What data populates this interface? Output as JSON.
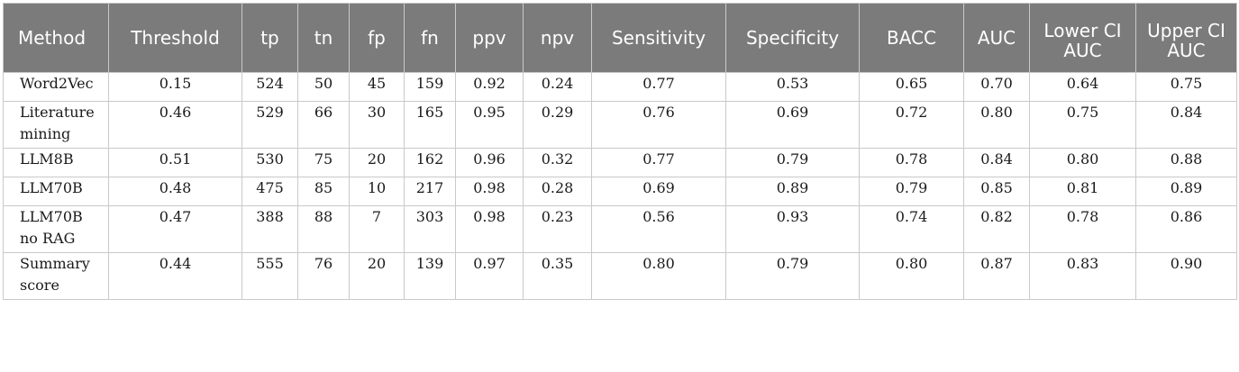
{
  "table": {
    "headers": [
      "Method",
      "Threshold",
      "tp",
      "tn",
      "fp",
      "fn",
      "ppv",
      "npv",
      "Sensitivity",
      "Specificity",
      "BACC",
      "AUC",
      "Lower CI AUC",
      "Upper CI AUC"
    ],
    "rows": [
      [
        "Word2Vec",
        "0.15",
        "524",
        "50",
        "45",
        "159",
        "0.92",
        "0.24",
        "0.77",
        "0.53",
        "0.65",
        "0.70",
        "0.64",
        "0.75"
      ],
      [
        "Literature mining",
        "0.46",
        "529",
        "66",
        "30",
        "165",
        "0.95",
        "0.29",
        "0.76",
        "0.69",
        "0.72",
        "0.80",
        "0.75",
        "0.84"
      ],
      [
        "LLM8B",
        "0.51",
        "530",
        "75",
        "20",
        "162",
        "0.96",
        "0.32",
        "0.77",
        "0.79",
        "0.78",
        "0.84",
        "0.80",
        "0.88"
      ],
      [
        "LLM70B",
        "0.48",
        "475",
        "85",
        "10",
        "217",
        "0.98",
        "0.28",
        "0.69",
        "0.89",
        "0.79",
        "0.85",
        "0.81",
        "0.89"
      ],
      [
        "LLM70B no RAG",
        "0.47",
        "388",
        "88",
        "7",
        "303",
        "0.98",
        "0.23",
        "0.56",
        "0.93",
        "0.74",
        "0.82",
        "0.78",
        "0.86"
      ],
      [
        "Summary score",
        "0.44",
        "555",
        "76",
        "20",
        "139",
        "0.97",
        "0.35",
        "0.80",
        "0.79",
        "0.80",
        "0.87",
        "0.83",
        "0.90"
      ]
    ]
  }
}
